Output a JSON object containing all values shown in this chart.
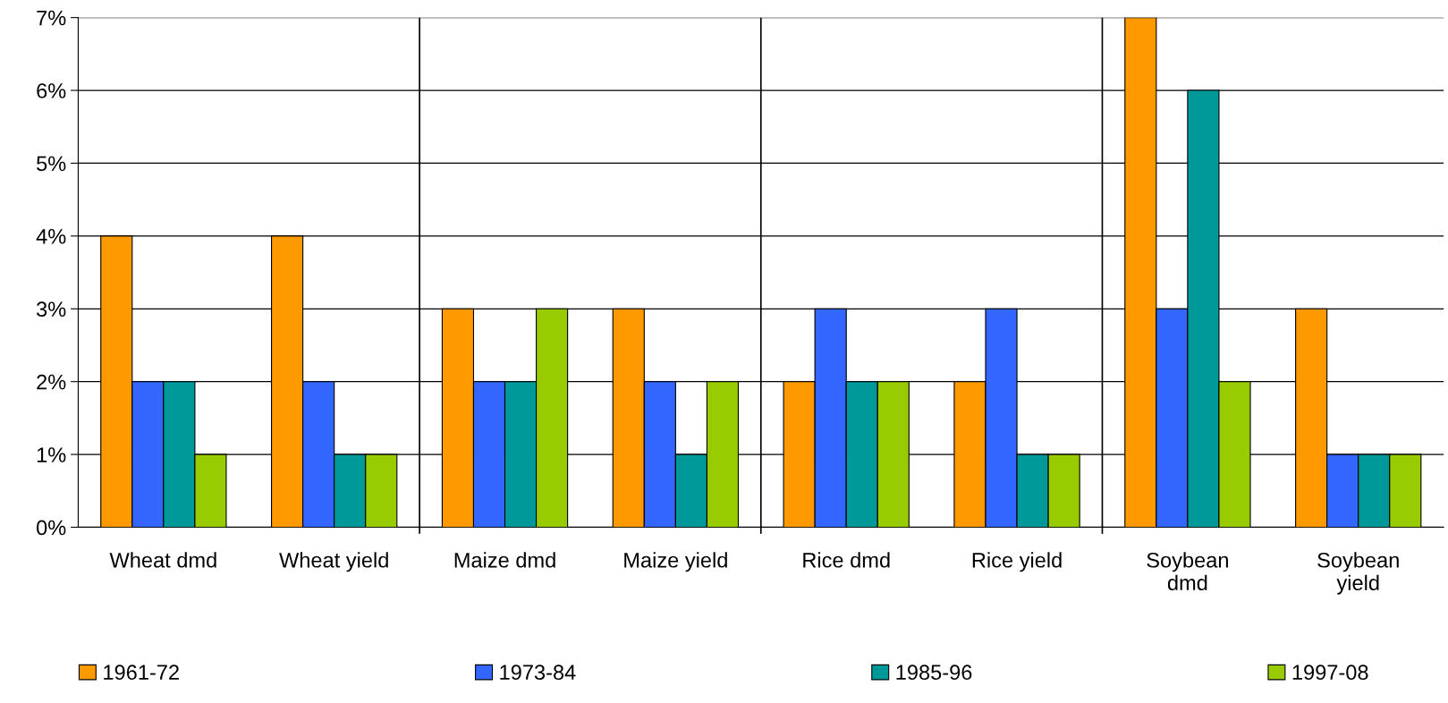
{
  "chart_data": {
    "type": "bar",
    "categories": [
      "Wheat dmd",
      "Wheat yield",
      "Maize dmd",
      "Maize yield",
      "Rice dmd",
      "Rice yield",
      "Soybean\ndmd",
      "Soybean\nyield"
    ],
    "series": [
      {
        "name": "1961-72",
        "color": "#ff9900",
        "values": [
          4,
          4,
          3,
          3,
          2,
          2,
          7,
          3
        ]
      },
      {
        "name": "1973-84",
        "color": "#3366ff",
        "values": [
          2,
          2,
          2,
          2,
          3,
          3,
          3,
          1
        ]
      },
      {
        "name": "1985-96",
        "color": "#009999",
        "values": [
          2,
          1,
          2,
          1,
          2,
          1,
          6,
          1
        ]
      },
      {
        "name": "1997-08",
        "color": "#99cc00",
        "values": [
          1,
          1,
          3,
          2,
          2,
          1,
          2,
          1
        ]
      }
    ],
    "ylim": [
      0,
      7
    ],
    "yticks": [
      {
        "value": 0,
        "label": "0%"
      },
      {
        "value": 1,
        "label": "1%"
      },
      {
        "value": 2,
        "label": "2%"
      },
      {
        "value": 3,
        "label": "3%"
      },
      {
        "value": 4,
        "label": "4%"
      },
      {
        "value": 5,
        "label": "5%"
      },
      {
        "value": 6,
        "label": "6%"
      },
      {
        "value": 7,
        "label": "7%"
      }
    ],
    "grid": "y",
    "legend": "bottom"
  }
}
